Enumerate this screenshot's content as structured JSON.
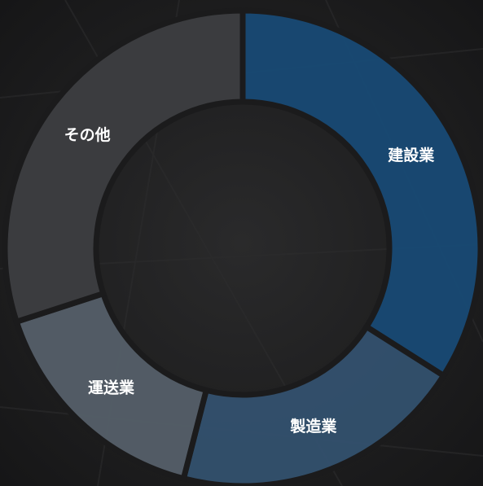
{
  "chart_data": {
    "type": "pie",
    "donut": true,
    "categories": [
      "建設業",
      "製造業",
      "運送業",
      "その他"
    ],
    "values": [
      34,
      20,
      16,
      30
    ],
    "colors": [
      "#184a75",
      "#33516e",
      "#555f69",
      "#3d3e41"
    ]
  }
}
